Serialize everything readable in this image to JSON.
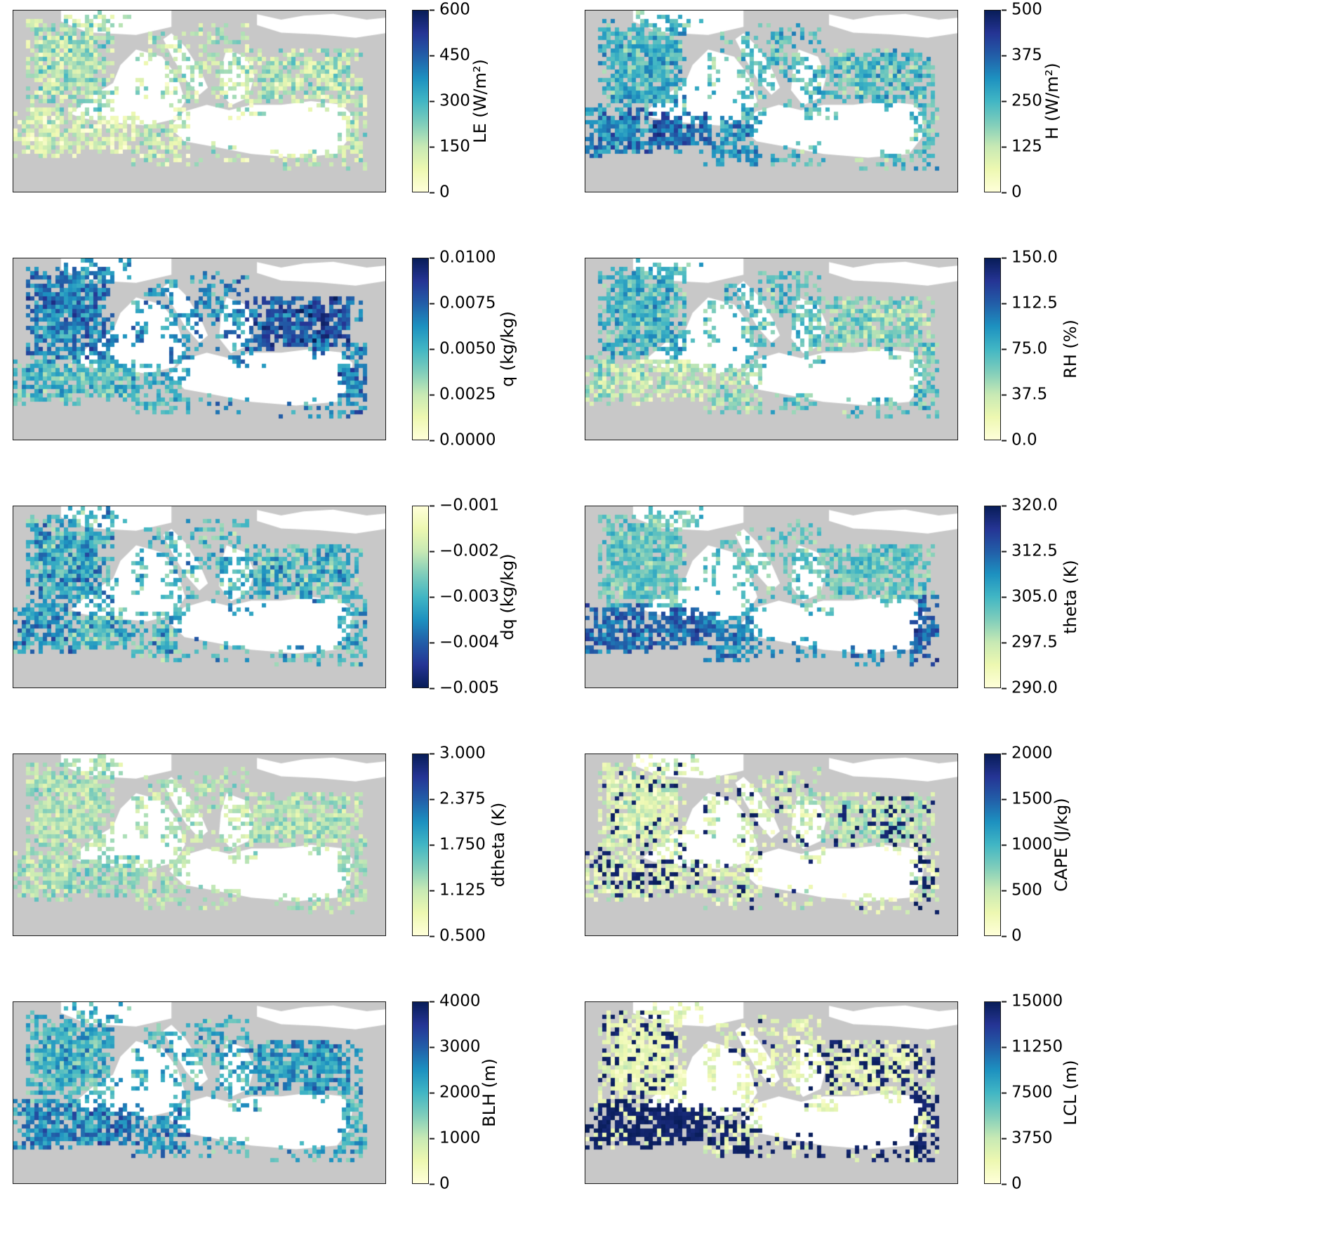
{
  "figure": {
    "rows": 5,
    "cols": 2,
    "colors": {
      "background": "#ffffff",
      "map_background": "#c8c8c8",
      "no_data_area": "#ffffff",
      "frame": "#1a1a1a"
    }
  },
  "chart_data": {
    "type": "heatmap",
    "layout": "5x2 grid of gridded Mediterranean-region maps, each with a vertical colorbar on its right",
    "region": "Mediterranean basin (Iberia, southern Europe, Anatolia, Levant, North Africa)",
    "colormap": "YlGnBu",
    "colormap_stops": [
      "#ffffd9",
      "#edf8b1",
      "#c7e9b4",
      "#7fcdbb",
      "#41b6c4",
      "#1d91c0",
      "#225ea8",
      "#253494",
      "#081d58"
    ],
    "panels": [
      {
        "id": "LE",
        "label": "LE (W/m²)",
        "row": 0,
        "col": 0,
        "vmin": 0,
        "vmax": 600,
        "tick_labels": [
          "600",
          "450",
          "300",
          "150",
          "0"
        ],
        "colorbar_reversed": false
      },
      {
        "id": "H",
        "label": "H (W/m²)",
        "row": 0,
        "col": 1,
        "vmin": 0,
        "vmax": 500,
        "tick_labels": [
          "500",
          "375",
          "250",
          "125",
          "0"
        ],
        "colorbar_reversed": false
      },
      {
        "id": "q",
        "label": "q (kg/kg)",
        "row": 1,
        "col": 0,
        "vmin": 0.0,
        "vmax": 0.01,
        "tick_labels": [
          "0.0100",
          "0.0075",
          "0.0050",
          "0.0025",
          "0.0000"
        ],
        "colorbar_reversed": false
      },
      {
        "id": "RH",
        "label": "RH (%)",
        "row": 1,
        "col": 1,
        "vmin": 0.0,
        "vmax": 150.0,
        "tick_labels": [
          "150.0",
          "112.5",
          "75.0",
          "37.5",
          "0.0"
        ],
        "colorbar_reversed": false
      },
      {
        "id": "dq",
        "label": "dq (kg/kg)",
        "row": 2,
        "col": 0,
        "vmin": -0.005,
        "vmax": -0.001,
        "tick_labels": [
          "−0.001",
          "−0.002",
          "−0.003",
          "−0.004",
          "−0.005"
        ],
        "colorbar_reversed": true
      },
      {
        "id": "theta",
        "label": "theta (K)",
        "row": 2,
        "col": 1,
        "vmin": 290.0,
        "vmax": 320.0,
        "tick_labels": [
          "320.0",
          "312.5",
          "305.0",
          "297.5",
          "290.0"
        ],
        "colorbar_reversed": false
      },
      {
        "id": "dtheta",
        "label": "dtheta (K)",
        "row": 3,
        "col": 0,
        "vmin": 0.5,
        "vmax": 3.0,
        "tick_labels": [
          "3.000",
          "2.375",
          "1.750",
          "1.125",
          "0.500"
        ],
        "colorbar_reversed": false
      },
      {
        "id": "CAPE",
        "label": "CAPE (J/kg)",
        "row": 3,
        "col": 1,
        "vmin": 0,
        "vmax": 2000,
        "tick_labels": [
          "2000",
          "1500",
          "1000",
          "500",
          "0"
        ],
        "colorbar_reversed": false
      },
      {
        "id": "BLH",
        "label": "BLH (m)",
        "row": 4,
        "col": 0,
        "vmin": 0,
        "vmax": 4000,
        "tick_labels": [
          "4000",
          "3000",
          "2000",
          "1000",
          "0"
        ],
        "colorbar_reversed": false
      },
      {
        "id": "LCL",
        "label": "LCL (m)",
        "row": 4,
        "col": 1,
        "vmin": 0,
        "vmax": 15000,
        "tick_labels": [
          "15000",
          "11250",
          "7500",
          "3750",
          "0"
        ],
        "colorbar_reversed": false
      }
    ]
  }
}
